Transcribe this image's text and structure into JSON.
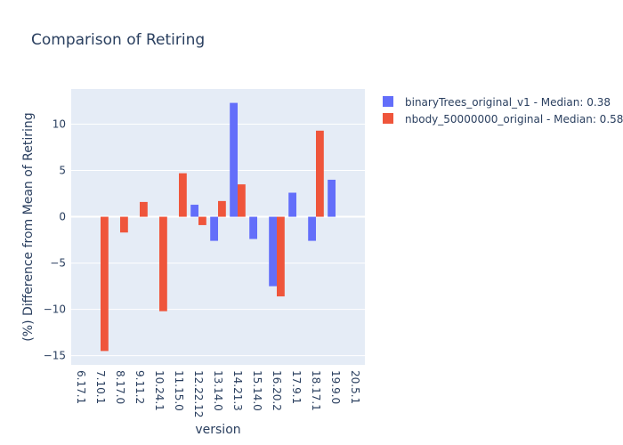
{
  "chart_data": {
    "type": "bar",
    "title": "Comparison of Retiring",
    "xlabel": "version",
    "ylabel": "(%) Difference from Mean of Retiring",
    "ylim": [
      -16,
      13.8
    ],
    "yticks": [
      -15,
      -10,
      -5,
      0,
      5,
      10
    ],
    "ytick_labels": [
      "−15",
      "−10",
      "−5",
      "0",
      "5",
      "10"
    ],
    "categories": [
      "6.17.1",
      "7.10.1",
      "8.17.0",
      "9.11.2",
      "10.24.1",
      "11.15.0",
      "12.22.12",
      "13.14.0",
      "14.21.3",
      "15.14.0",
      "16.20.2",
      "17.9.1",
      "18.17.1",
      "19.9.0",
      "20.5.1"
    ],
    "grid": true,
    "legend_position": "top-right",
    "series": [
      {
        "name": "binaryTrees_original_v1 - Median: 0.38",
        "color": "#636efa",
        "values": [
          null,
          null,
          null,
          null,
          null,
          null,
          1.3,
          -2.6,
          12.3,
          -2.4,
          -7.5,
          2.6,
          -2.6,
          4.0,
          null
        ]
      },
      {
        "name": "nbody_50000000_original - Median: 0.58",
        "color": "#ef553b",
        "values": [
          null,
          -14.5,
          -1.7,
          1.6,
          -10.2,
          4.7,
          -0.9,
          1.7,
          3.5,
          null,
          -8.6,
          null,
          9.3,
          null,
          null
        ]
      }
    ]
  }
}
